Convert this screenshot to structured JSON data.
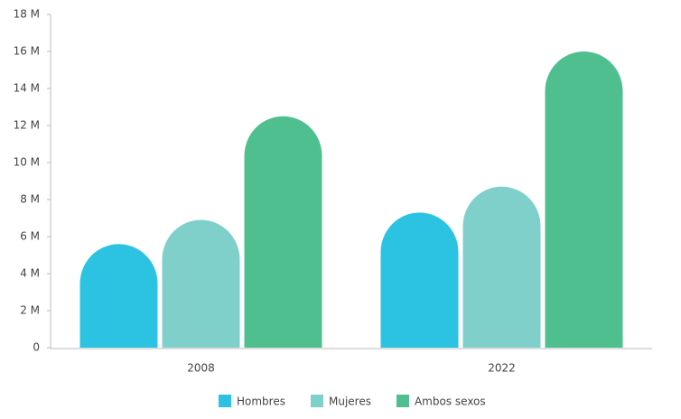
{
  "chart_data": {
    "type": "bar",
    "categories": [
      "2008",
      "2022"
    ],
    "series": [
      {
        "name": "Hombres",
        "color": "#2cc3e3",
        "values": [
          5600000,
          7300000
        ]
      },
      {
        "name": "Mujeres",
        "color": "#7fcfcb",
        "values": [
          6900000,
          8700000
        ]
      },
      {
        "name": "Ambos sexos",
        "color": "#4fbf8f",
        "values": [
          12500000,
          16000000
        ]
      }
    ],
    "ylim": [
      0,
      18000000
    ],
    "yticks": [
      0,
      {
        "value": 2000000,
        "label": "2 M"
      },
      {
        "value": 4000000,
        "label": "4 M"
      },
      {
        "value": 6000000,
        "label": "6 M"
      },
      {
        "value": 8000000,
        "label": "8 M"
      },
      {
        "value": 10000000,
        "label": "10 M"
      },
      {
        "value": 12000000,
        "label": "12 M"
      },
      {
        "value": 14000000,
        "label": "14 M"
      },
      {
        "value": 16000000,
        "label": "16 M"
      },
      {
        "value": 18000000,
        "label": "18 M"
      }
    ]
  }
}
